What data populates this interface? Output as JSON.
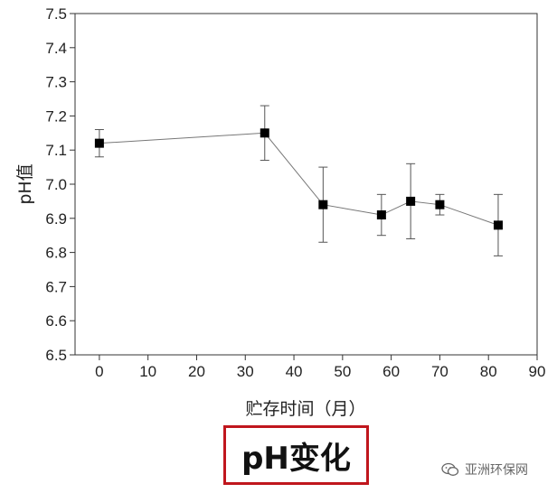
{
  "chart_data": {
    "type": "scatter",
    "xlabel": "贮存时间（月）",
    "ylabel": "pH值",
    "xlim": [
      -5,
      90
    ],
    "ylim": [
      6.5,
      7.5
    ],
    "xticks": [
      0,
      10,
      20,
      30,
      40,
      50,
      60,
      70,
      80,
      90
    ],
    "yticks": [
      6.5,
      6.6,
      6.7,
      6.8,
      6.9,
      7.0,
      7.1,
      7.2,
      7.3,
      7.4,
      7.5
    ],
    "x": [
      0,
      34,
      46,
      58,
      64,
      70,
      82
    ],
    "y": [
      7.12,
      7.15,
      6.94,
      6.91,
      6.95,
      6.94,
      6.88
    ],
    "error_low": [
      7.08,
      7.07,
      6.83,
      6.85,
      6.84,
      6.91,
      6.79
    ],
    "error_high": [
      7.16,
      7.23,
      7.05,
      6.97,
      7.06,
      6.97,
      6.97
    ],
    "marker": "square",
    "line_connected": true,
    "grid": false
  },
  "caption": "pH变化",
  "watermark": {
    "text": "亚洲环保网",
    "icon": "wechat-icon"
  }
}
